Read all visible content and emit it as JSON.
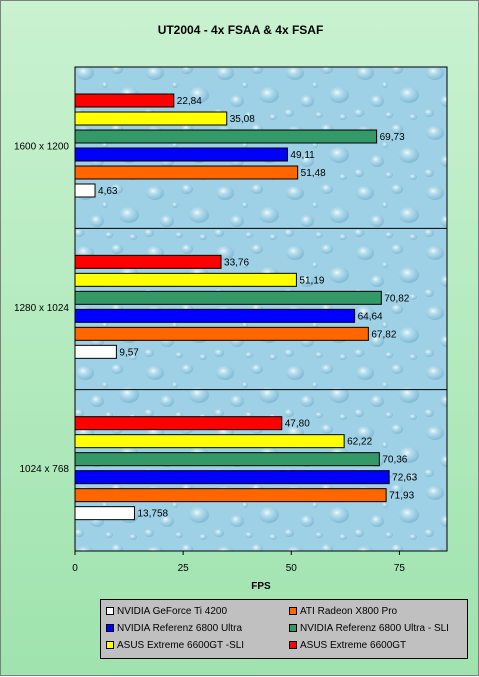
{
  "chart_data": {
    "type": "bar",
    "orientation": "horizontal",
    "title": "UT2004 - 4x FSAA & 4x FSAF",
    "xlabel": "FPS",
    "ylabel": "",
    "xlim": [
      0,
      86
    ],
    "xticks": [
      0,
      25,
      50,
      75
    ],
    "categories": [
      "1600 x 1200",
      "1280 x 1024",
      "1024 x 768"
    ],
    "series": [
      {
        "name": "ASUS Extreme 6600GT",
        "color": "#ff0000",
        "values": [
          22.84,
          33.76,
          47.8
        ],
        "labels": [
          "22,84",
          "33,76",
          "47,80"
        ]
      },
      {
        "name": "ASUS Extreme 6600GT -SLI",
        "color": "#ffff00",
        "values": [
          35.08,
          51.19,
          62.22
        ],
        "labels": [
          "35,08",
          "51,19",
          "62,22"
        ]
      },
      {
        "name": "NVIDIA  Referenz 6800 Ultra - SLI",
        "color": "#339966",
        "values": [
          69.73,
          70.82,
          70.36
        ],
        "labels": [
          "69,73",
          "70,82",
          "70,36"
        ]
      },
      {
        "name": "NVIDIA  Referenz 6800 Ultra",
        "color": "#0000ff",
        "values": [
          49.11,
          64.64,
          72.63
        ],
        "labels": [
          "49,11",
          "64,64",
          "72,63"
        ]
      },
      {
        "name": "ATI Radeon X800 Pro",
        "color": "#ff6600",
        "values": [
          51.48,
          67.82,
          71.93
        ],
        "labels": [
          "51,48",
          "67,82",
          "71,93"
        ]
      },
      {
        "name": "NVIDIA GeForce Ti 4200",
        "color": "#ffffff",
        "values": [
          4.63,
          9.57,
          13.758
        ],
        "labels": [
          "4,63",
          "9,57",
          "13,758"
        ]
      }
    ],
    "legend_order": [
      5,
      4,
      3,
      2,
      1,
      0
    ],
    "legend_position": "bottom",
    "grid": false,
    "background": "water-droplet texture"
  }
}
